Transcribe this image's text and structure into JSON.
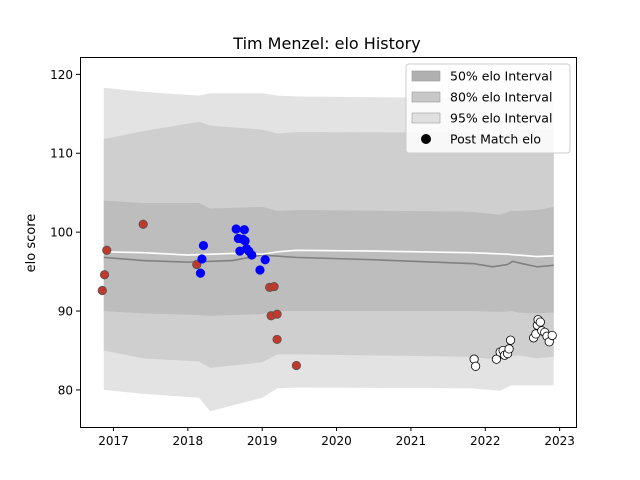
{
  "chart_data": {
    "type": "scatter",
    "title": "Tim Menzel: elo History",
    "ylabel": "elo score",
    "xlabel": "",
    "xlim": [
      2016.55,
      2023.22
    ],
    "ylim": [
      75.3,
      122.2
    ],
    "xticks": [
      2017,
      2018,
      2019,
      2020,
      2021,
      2022,
      2023
    ],
    "yticks": [
      80,
      90,
      100,
      110,
      120
    ],
    "grid": false,
    "legend_position": "top-right",
    "legend": [
      {
        "label": "50% elo Interval",
        "kind": "band",
        "color": "#b0b0b0"
      },
      {
        "label": "80% elo Interval",
        "kind": "band",
        "color": "#c8c8c8"
      },
      {
        "label": "95% elo Interval",
        "kind": "band",
        "color": "#e0e0e0"
      },
      {
        "label": "Post Match elo",
        "kind": "marker",
        "color": "#000000"
      }
    ],
    "colors": {
      "band95": "#e3e3e3",
      "band80": "#cfcfcf",
      "band50": "#bdbdbd",
      "median": "#808080",
      "mean": "#ffffff",
      "red_point": "#c0392b",
      "red_edge": "#555555",
      "blue_point": "#0000ff",
      "white_point": "#ffffff",
      "white_edge": "#000000"
    },
    "band_x": [
      2016.87,
      2017.4,
      2018.15,
      2018.3,
      2019.0,
      2019.2,
      2019.5,
      2021.8,
      2022.2,
      2022.35,
      2022.45,
      2022.7,
      2022.92
    ],
    "band95_upper": [
      118.3,
      117.8,
      117.3,
      117.6,
      117.6,
      117.3,
      117.2,
      117.0,
      116.7,
      117.0,
      117.0,
      116.8,
      117.0
    ],
    "band95_lower": [
      80.0,
      79.5,
      79.0,
      77.3,
      79.0,
      80.2,
      80.3,
      80.2,
      79.9,
      80.6,
      80.6,
      80.6,
      80.6
    ],
    "band80_upper": [
      111.8,
      112.8,
      114.0,
      113.5,
      113.0,
      112.5,
      112.7,
      112.6,
      112.0,
      113.0,
      113.0,
      113.0,
      113.0
    ],
    "band80_lower": [
      85.0,
      84.0,
      83.6,
      82.8,
      83.5,
      84.5,
      84.5,
      84.2,
      83.8,
      84.3,
      84.4,
      84.0,
      84.2
    ],
    "band50_upper": [
      104.0,
      103.7,
      103.7,
      103.0,
      103.2,
      102.7,
      102.8,
      102.6,
      102.2,
      102.7,
      102.7,
      102.8,
      103.2
    ],
    "band50_lower": [
      90.0,
      89.7,
      89.5,
      89.4,
      89.6,
      90.0,
      90.0,
      90.0,
      89.9,
      90.0,
      89.8,
      89.7,
      89.8
    ],
    "median_line": {
      "x": [
        2016.87,
        2017.4,
        2018.0,
        2018.6,
        2019.0,
        2019.45,
        2020.5,
        2021.85,
        2022.1,
        2022.3,
        2022.37,
        2022.5,
        2022.7,
        2022.92
      ],
      "y": [
        96.8,
        96.4,
        96.2,
        96.4,
        97.1,
        96.8,
        96.5,
        96.0,
        95.6,
        95.9,
        96.3,
        96.0,
        95.6,
        95.8
      ]
    },
    "mean_line": {
      "x": [
        2016.87,
        2017.4,
        2018.0,
        2018.6,
        2019.0,
        2019.2,
        2019.45,
        2020.5,
        2021.8,
        2022.3,
        2022.7,
        2022.92
      ],
      "y": [
        97.5,
        97.4,
        97.1,
        97.3,
        97.2,
        97.5,
        97.7,
        97.6,
        97.4,
        97.2,
        96.9,
        97.0
      ]
    },
    "red_points": [
      {
        "x": 2016.85,
        "y": 92.6
      },
      {
        "x": 2016.88,
        "y": 94.6
      },
      {
        "x": 2016.91,
        "y": 97.7
      },
      {
        "x": 2017.4,
        "y": 101.0
      },
      {
        "x": 2018.12,
        "y": 95.9
      },
      {
        "x": 2019.1,
        "y": 93.0
      },
      {
        "x": 2019.16,
        "y": 93.1
      },
      {
        "x": 2019.12,
        "y": 89.4
      },
      {
        "x": 2019.2,
        "y": 89.6
      },
      {
        "x": 2019.2,
        "y": 86.4
      },
      {
        "x": 2019.46,
        "y": 83.1
      }
    ],
    "blue_points": [
      {
        "x": 2018.17,
        "y": 94.8
      },
      {
        "x": 2018.19,
        "y": 96.6
      },
      {
        "x": 2018.21,
        "y": 98.3
      },
      {
        "x": 2018.65,
        "y": 100.4
      },
      {
        "x": 2018.68,
        "y": 99.2
      },
      {
        "x": 2018.7,
        "y": 97.6
      },
      {
        "x": 2018.74,
        "y": 99.1
      },
      {
        "x": 2018.76,
        "y": 100.3
      },
      {
        "x": 2018.77,
        "y": 98.9
      },
      {
        "x": 2018.79,
        "y": 97.9
      },
      {
        "x": 2018.82,
        "y": 97.6
      },
      {
        "x": 2018.86,
        "y": 97.1
      },
      {
        "x": 2018.97,
        "y": 95.2
      },
      {
        "x": 2019.04,
        "y": 96.5
      }
    ],
    "white_points": [
      {
        "x": 2021.85,
        "y": 83.9
      },
      {
        "x": 2021.87,
        "y": 83.0
      },
      {
        "x": 2022.15,
        "y": 83.9
      },
      {
        "x": 2022.2,
        "y": 84.8
      },
      {
        "x": 2022.24,
        "y": 85.0
      },
      {
        "x": 2022.26,
        "y": 84.4
      },
      {
        "x": 2022.3,
        "y": 84.6
      },
      {
        "x": 2022.32,
        "y": 85.2
      },
      {
        "x": 2022.34,
        "y": 86.3
      },
      {
        "x": 2022.65,
        "y": 86.6
      },
      {
        "x": 2022.68,
        "y": 87.1
      },
      {
        "x": 2022.7,
        "y": 88.2
      },
      {
        "x": 2022.71,
        "y": 88.9
      },
      {
        "x": 2022.74,
        "y": 88.6
      },
      {
        "x": 2022.76,
        "y": 87.5
      },
      {
        "x": 2022.8,
        "y": 87.3
      },
      {
        "x": 2022.83,
        "y": 86.8
      },
      {
        "x": 2022.86,
        "y": 86.1
      },
      {
        "x": 2022.9,
        "y": 86.9
      }
    ]
  }
}
